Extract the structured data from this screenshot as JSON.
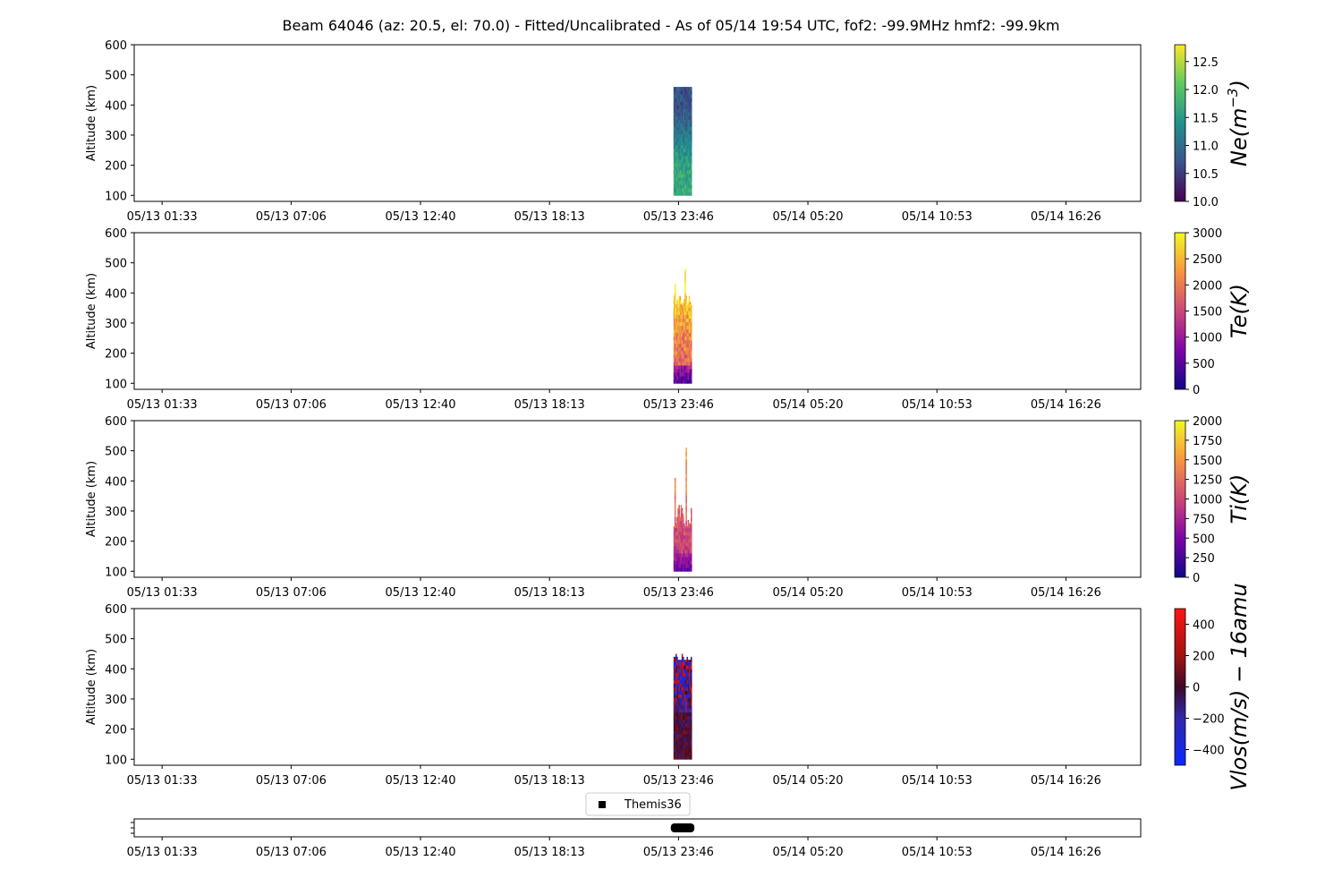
{
  "title": "Beam 64046 (az: 20.5, el: 70.0) - Fitted/Uncalibrated - As of 05/14 19:54 UTC, fof2: -99.9MHz  hmf2: -99.9km",
  "x_tick_labels": [
    "05/13 01:33",
    "05/13 07:06",
    "05/13 12:40",
    "05/13 18:13",
    "05/13 23:46",
    "05/14 05:20",
    "05/14 10:53",
    "05/14 16:26"
  ],
  "chart_data": [
    {
      "type": "heatmap",
      "ylabel": "Altitude (km)",
      "ylim": [
        80,
        600
      ],
      "yticks": [
        100,
        200,
        300,
        400,
        500,
        600
      ],
      "colorbar_label": "Ne(m^-3)",
      "colormap": "viridis",
      "clim": [
        10.0,
        12.8
      ],
      "colorbar_ticks": [
        "10.0",
        "10.5",
        "11.0",
        "11.5",
        "12.0",
        "12.5"
      ],
      "data_time_window": [
        "05/13 23:33",
        "05/14 00:20"
      ],
      "altitude_range": [
        100,
        460
      ],
      "approx_value": 11.3
    },
    {
      "type": "heatmap",
      "ylabel": "Altitude (km)",
      "ylim": [
        80,
        600
      ],
      "yticks": [
        100,
        200,
        300,
        400,
        500,
        600
      ],
      "colorbar_label": "Te(K)",
      "colormap": "plasma",
      "clim": [
        0,
        3000
      ],
      "colorbar_ticks": [
        "0",
        "500",
        "1000",
        "1500",
        "2000",
        "2500",
        "3000"
      ],
      "data_time_window": [
        "05/13 23:33",
        "05/14 00:20"
      ],
      "altitude_range": [
        100,
        460
      ]
    },
    {
      "type": "heatmap",
      "ylabel": "Altitude (km)",
      "ylim": [
        80,
        600
      ],
      "yticks": [
        100,
        200,
        300,
        400,
        500,
        600
      ],
      "colorbar_label": "Ti(K)",
      "colormap": "plasma",
      "clim": [
        0,
        2000
      ],
      "colorbar_ticks": [
        "0",
        "250",
        "500",
        "750",
        "1000",
        "1250",
        "1500",
        "1750",
        "2000"
      ],
      "data_time_window": [
        "05/13 23:33",
        "05/14 00:20"
      ],
      "altitude_range": [
        100,
        460
      ]
    },
    {
      "type": "heatmap",
      "ylabel": "Altitude (km)",
      "ylim": [
        80,
        600
      ],
      "yticks": [
        100,
        200,
        300,
        400,
        500,
        600
      ],
      "colorbar_label": "Vlos(m/s) - 16amu",
      "colormap": "blue-dark-red",
      "clim": [
        -500,
        500
      ],
      "colorbar_ticks": [
        "-400",
        "-200",
        "0",
        "200",
        "400"
      ],
      "data_time_window": [
        "05/13 23:33",
        "05/14 00:20"
      ],
      "altitude_range": [
        100,
        460
      ]
    }
  ],
  "timeline": {
    "legend_label": "Themis36",
    "data_time_window": [
      "05/13 23:33",
      "05/14 00:20"
    ]
  }
}
